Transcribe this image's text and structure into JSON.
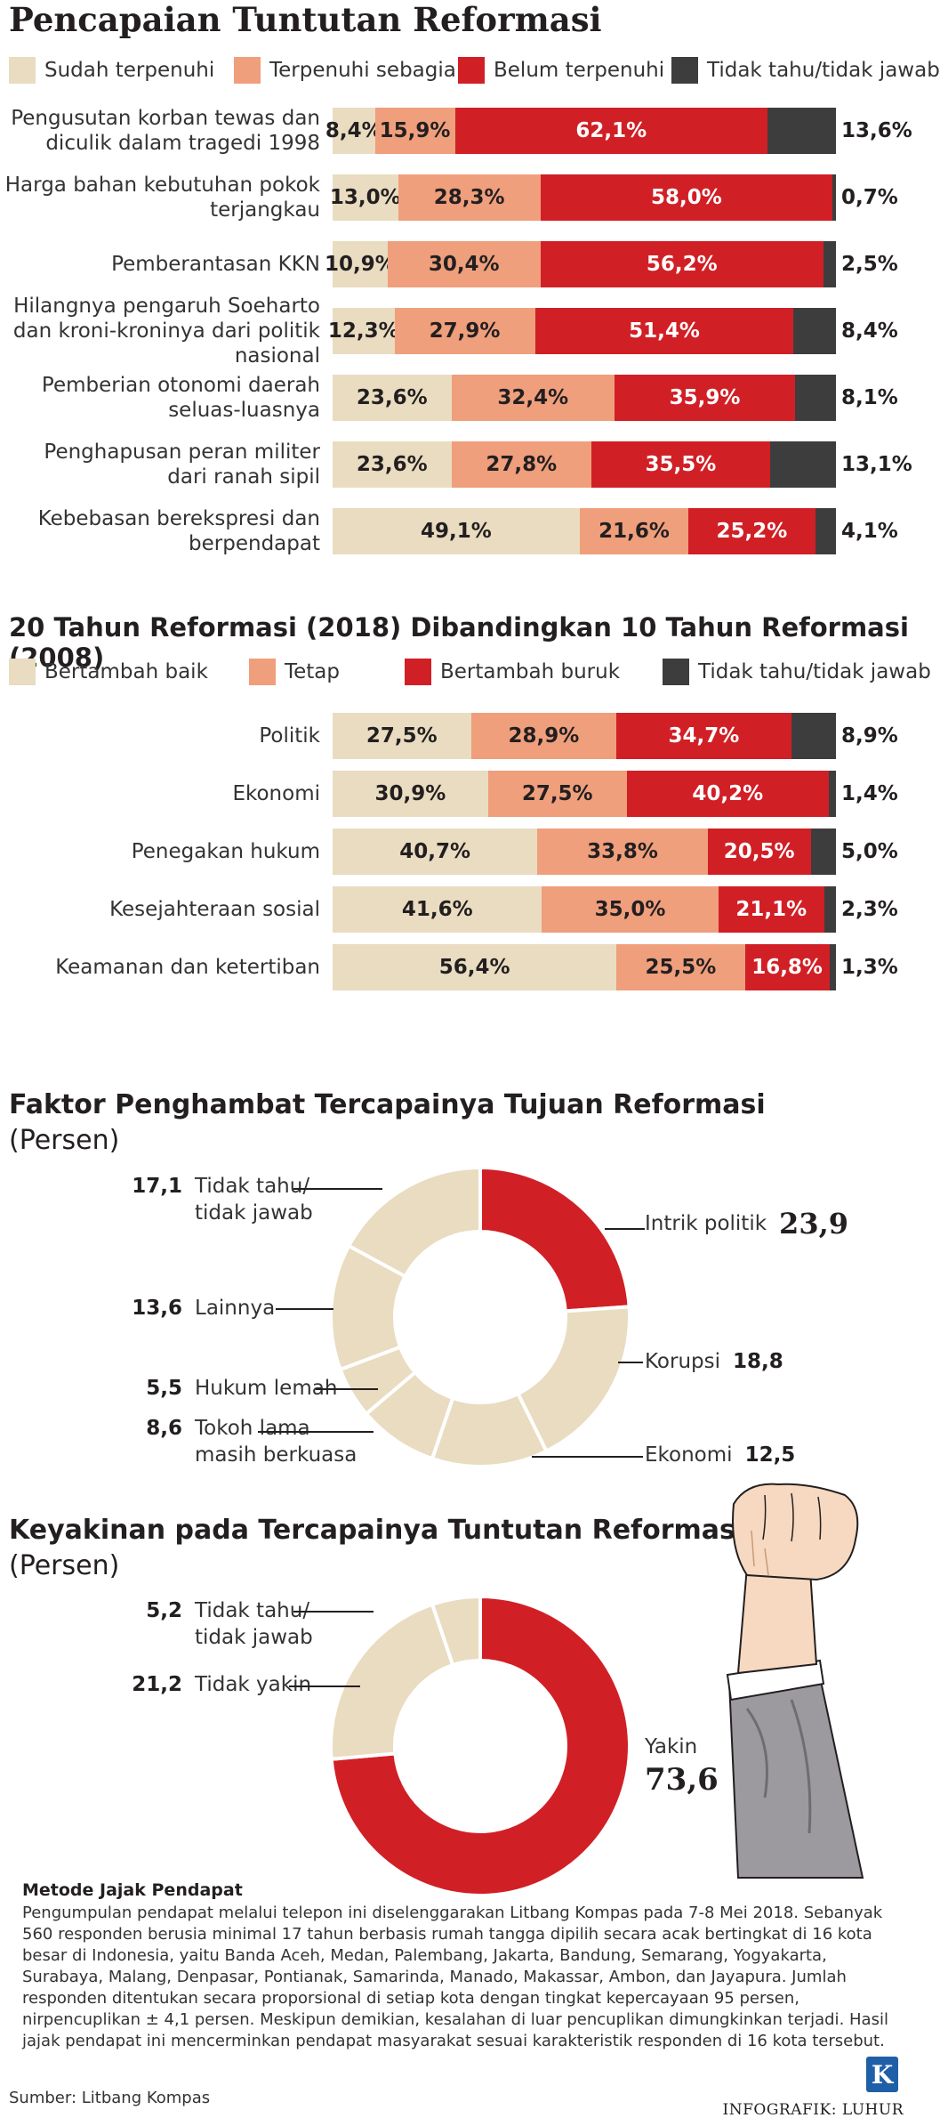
{
  "section1": {
    "title": "Pencapaian Tuntutan Reformasi",
    "legend": [
      {
        "label": "Sudah terpenuhi",
        "color": "#e9dcc0"
      },
      {
        "label": "Terpenuhi sebagian",
        "color": "#ef9f7c"
      },
      {
        "label": "Belum terpenuhi",
        "color": "#d11f26"
      },
      {
        "label": "Tidak tahu/tidak jawab",
        "color": "#3d3d3e"
      }
    ]
  },
  "section2": {
    "title": "20 Tahun Reformasi (2018) Dibandingkan 10 Tahun Reformasi (2008)",
    "legend": [
      {
        "label": "Bertambah baik",
        "color": "#e9dcc0"
      },
      {
        "label": "Tetap",
        "color": "#ef9f7c"
      },
      {
        "label": "Bertambah buruk",
        "color": "#d11f26"
      },
      {
        "label": "Tidak tahu/tidak jawab",
        "color": "#3d3d3e"
      }
    ]
  },
  "section3": {
    "title": "Faktor Penghambat Tercapainya Tujuan Reformasi",
    "unit": "(Persen)"
  },
  "section4": {
    "title": "Keyakinan pada Tercapainya Tuntutan Reformasi",
    "unit": "(Persen)"
  },
  "chart_data": [
    {
      "type": "bar",
      "stacked": true,
      "orientation": "horizontal",
      "title": "Pencapaian Tuntutan Reformasi",
      "categories": [
        "Pengusutan korban tewas dan diculik dalam tragedi 1998",
        "Harga bahan kebutuhan pokok terjangkau",
        "Pemberantasan KKN",
        "Hilangnya pengaruh Soeharto dan kroni-kroninya dari politik nasional",
        "Pemberian otonomi daerah seluas-luasnya",
        "Penghapusan peran militer dari ranah sipil",
        "Kebebasan berekspresi dan berpendapat"
      ],
      "series": [
        {
          "name": "Sudah terpenuhi",
          "values": [
            8.4,
            13.0,
            10.9,
            12.3,
            23.6,
            23.6,
            49.1
          ]
        },
        {
          "name": "Terpenuhi sebagian",
          "values": [
            15.9,
            28.3,
            30.4,
            27.9,
            32.4,
            27.8,
            21.6
          ]
        },
        {
          "name": "Belum terpenuhi",
          "values": [
            62.1,
            58.0,
            56.2,
            51.4,
            35.9,
            35.5,
            25.2
          ]
        },
        {
          "name": "Tidak tahu/tidak jawab",
          "values": [
            13.6,
            0.7,
            2.5,
            8.4,
            8.1,
            13.1,
            4.1
          ]
        }
      ],
      "labels": [
        [
          "8,4%",
          "15,9%",
          "62,1%",
          "13,6%"
        ],
        [
          "13,0%",
          "28,3%",
          "58,0%",
          "0,7%"
        ],
        [
          "10,9%",
          "30,4%",
          "56,2%",
          "2,5%"
        ],
        [
          "12,3%",
          "27,9%",
          "51,4%",
          "8,4%"
        ],
        [
          "23,6%",
          "32,4%",
          "35,9%",
          "8,1%"
        ],
        [
          "23,6%",
          "27,8%",
          "35,5%",
          "13,1%"
        ],
        [
          "49,1%",
          "21,6%",
          "25,2%",
          "4,1%"
        ]
      ]
    },
    {
      "type": "bar",
      "stacked": true,
      "orientation": "horizontal",
      "title": "20 Tahun Reformasi (2018) Dibandingkan 10 Tahun Reformasi (2008)",
      "categories": [
        "Politik",
        "Ekonomi",
        "Penegakan hukum",
        "Kesejahteraan sosial",
        "Keamanan dan ketertiban"
      ],
      "series": [
        {
          "name": "Bertambah baik",
          "values": [
            27.5,
            30.9,
            40.7,
            41.6,
            56.4
          ]
        },
        {
          "name": "Tetap",
          "values": [
            28.9,
            27.5,
            33.8,
            35.0,
            25.5
          ]
        },
        {
          "name": "Bertambah buruk",
          "values": [
            34.7,
            40.2,
            20.5,
            21.1,
            16.8
          ]
        },
        {
          "name": "Tidak tahu/tidak jawab",
          "values": [
            8.9,
            1.4,
            5.0,
            2.3,
            1.3
          ]
        }
      ],
      "labels": [
        [
          "27,5%",
          "28,9%",
          "34,7%",
          "8,9%"
        ],
        [
          "30,9%",
          "27,5%",
          "40,2%",
          "1,4%"
        ],
        [
          "40,7%",
          "33,8%",
          "20,5%",
          "5,0%"
        ],
        [
          "41,6%",
          "35,0%",
          "21,1%",
          "2,3%"
        ],
        [
          "56,4%",
          "25,5%",
          "16,8%",
          "1,3%"
        ]
      ]
    },
    {
      "type": "pie",
      "donut": true,
      "title": "Faktor Penghambat Tercapainya Tujuan Reformasi",
      "unit": "(Persen)",
      "slices": [
        {
          "label": "Intrik politik",
          "value": 23.9,
          "display": "23,9",
          "color": "#d11f26"
        },
        {
          "label": "Korupsi",
          "value": 18.8,
          "display": "18,8",
          "color": "#e9dcc0"
        },
        {
          "label": "Ekonomi",
          "value": 12.5,
          "display": "12,5",
          "color": "#e9dcc0"
        },
        {
          "label": "Tokoh lama masih berkuasa",
          "value": 8.6,
          "display": "8,6",
          "color": "#e9dcc0"
        },
        {
          "label": "Hukum lemah",
          "value": 5.5,
          "display": "5,5",
          "color": "#e9dcc0"
        },
        {
          "label": "Lainnya",
          "value": 13.6,
          "display": "13,6",
          "color": "#e9dcc0"
        },
        {
          "label": "Tidak tahu/ tidak jawab",
          "value": 17.1,
          "display": "17,1",
          "color": "#e9dcc0"
        }
      ]
    },
    {
      "type": "pie",
      "donut": true,
      "title": "Keyakinan pada Tercapainya Tuntutan Reformasi",
      "unit": "(Persen)",
      "slices": [
        {
          "label": "Yakin",
          "value": 73.6,
          "display": "73,6",
          "color": "#d11f26"
        },
        {
          "label": "Tidak yakin",
          "value": 21.2,
          "display": "21,2",
          "color": "#e9dcc0"
        },
        {
          "label": "Tidak tahu/ tidak jawab",
          "value": 5.2,
          "display": "5,2",
          "color": "#e9dcc0"
        }
      ]
    }
  ],
  "method": {
    "title": "Metode Jajak Pendapat",
    "body": "Pengumpulan pendapat melalui telepon ini diselenggarakan Litbang Kompas pada 7-8 Mei 2018. Sebanyak 560 responden berusia minimal 17 tahun berbasis rumah tangga dipilih secara acak bertingkat di 16 kota besar di Indonesia, yaitu Banda Aceh, Medan, Palembang, Jakarta, Bandung, Semarang, Yogyakarta, Surabaya, Malang, Denpasar, Pontianak, Samarinda, Manado, Makassar, Ambon, dan Jayapura. Jumlah responden ditentukan secara proporsional di setiap kota dengan tingkat kepercayaan 95 persen, nirpencuplikan ± 4,1 persen. Meskipun demikian, kesalahan di luar pencuplikan dimungkinkan terjadi. Hasil jajak pendapat ini mencerminkan pendapat masyarakat sesuai karakteristik responden di 16 kota tersebut."
  },
  "footer": {
    "source": "Sumber: Litbang Kompas",
    "credit": "INFOGRAFIK: LUHUR",
    "logo_letter": "K"
  },
  "colors": {
    "beige": "#e9dcc0",
    "salmon": "#ef9f7c",
    "red": "#d11f26",
    "dark": "#3d3d3e"
  }
}
